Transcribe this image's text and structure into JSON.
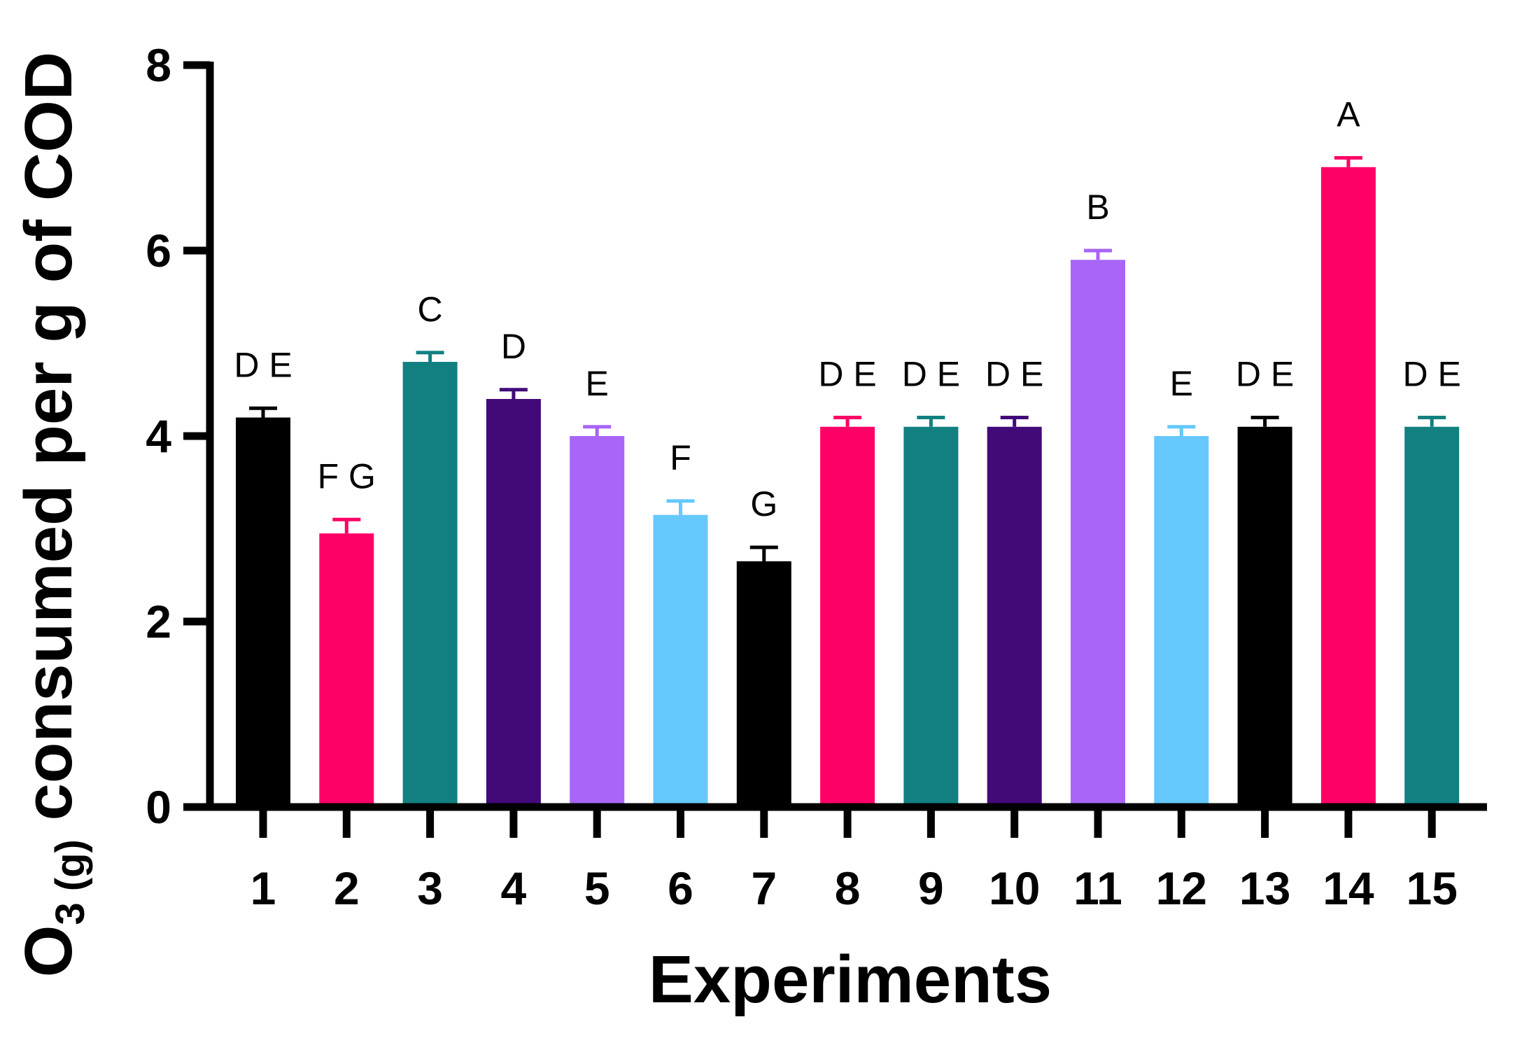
{
  "chart_data": {
    "type": "bar",
    "xlabel": "Experiments",
    "ylabel": {
      "prefix": "O",
      "subscript": "3 (g)",
      "rest": " consumed per g of COD"
    },
    "ylim": [
      0,
      8
    ],
    "yticks": [
      "0",
      "2",
      "4",
      "6",
      "8"
    ],
    "categories": [
      "1",
      "2",
      "3",
      "4",
      "5",
      "6",
      "7",
      "8",
      "9",
      "10",
      "11",
      "12",
      "13",
      "14",
      "15"
    ],
    "values": [
      4.2,
      2.95,
      4.8,
      4.4,
      4.0,
      3.15,
      2.65,
      4.1,
      4.1,
      4.1,
      5.9,
      4.0,
      4.1,
      6.9,
      4.1
    ],
    "errors": [
      0.1,
      0.15,
      0.1,
      0.1,
      0.1,
      0.15,
      0.15,
      0.1,
      0.1,
      0.1,
      0.1,
      0.1,
      0.1,
      0.1,
      0.1
    ],
    "letters": [
      "D E",
      "F G",
      "C",
      "D",
      "E",
      "F",
      "G",
      "D E",
      "D E",
      "D E",
      "B",
      "E",
      "D E",
      "A",
      "D E"
    ],
    "colors": [
      "#000000",
      "#ff0066",
      "#128080",
      "#420a78",
      "#a865f7",
      "#66c8fc",
      "#000000",
      "#ff0066",
      "#128080",
      "#420a78",
      "#a865f7",
      "#66c8fc",
      "#000000",
      "#ff0066",
      "#128080"
    ],
    "grid": false
  }
}
